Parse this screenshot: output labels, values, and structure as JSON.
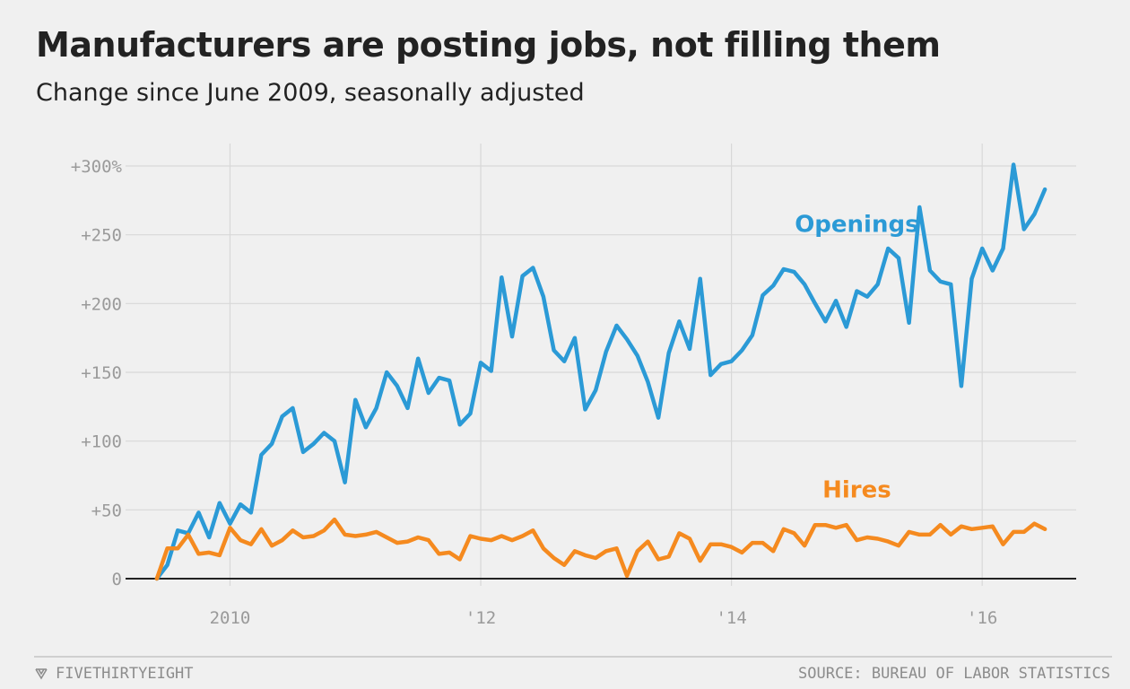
{
  "chart_data": {
    "type": "line",
    "title": "Manufacturers are posting jobs, not filling them",
    "subtitle": "Change since June 2009, seasonally adjusted",
    "xlabel": "",
    "ylabel": "",
    "xlim": [
      "2009-03",
      "2016-10"
    ],
    "ylim": [
      0,
      300
    ],
    "grid": true,
    "y_ticks": [
      {
        "value": 0,
        "label": "0"
      },
      {
        "value": 50,
        "label": "+50"
      },
      {
        "value": 100,
        "label": "+100"
      },
      {
        "value": 150,
        "label": "+150"
      },
      {
        "value": 200,
        "label": "+200"
      },
      {
        "value": 250,
        "label": "+250"
      },
      {
        "value": 300,
        "label": "+300%"
      }
    ],
    "x_ticks": [
      {
        "value": "2010-01",
        "label": "2010"
      },
      {
        "value": "2012-01",
        "label": "'12"
      },
      {
        "value": "2014-01",
        "label": "'14"
      },
      {
        "value": "2016-01",
        "label": "'16"
      }
    ],
    "series": [
      {
        "name": "Openings",
        "color": "#2b9ad6",
        "x": [
          "2009-06",
          "2009-07",
          "2009-08",
          "2009-09",
          "2009-10",
          "2009-11",
          "2009-12",
          "2010-01",
          "2010-02",
          "2010-03",
          "2010-04",
          "2010-05",
          "2010-06",
          "2010-07",
          "2010-08",
          "2010-09",
          "2010-10",
          "2010-11",
          "2010-12",
          "2011-01",
          "2011-02",
          "2011-03",
          "2011-04",
          "2011-05",
          "2011-06",
          "2011-07",
          "2011-08",
          "2011-09",
          "2011-10",
          "2011-11",
          "2011-12",
          "2012-01",
          "2012-02",
          "2012-03",
          "2012-04",
          "2012-05",
          "2012-06",
          "2012-07",
          "2012-08",
          "2012-09",
          "2012-10",
          "2012-11",
          "2012-12",
          "2013-01",
          "2013-02",
          "2013-03",
          "2013-04",
          "2013-05",
          "2013-06",
          "2013-07",
          "2013-08",
          "2013-09",
          "2013-10",
          "2013-11",
          "2013-12",
          "2014-01",
          "2014-02",
          "2014-03",
          "2014-04",
          "2014-05",
          "2014-06",
          "2014-07",
          "2014-08",
          "2014-09",
          "2014-10",
          "2014-11",
          "2014-12",
          "2015-01",
          "2015-02",
          "2015-03",
          "2015-04",
          "2015-05",
          "2015-06",
          "2015-07",
          "2015-08",
          "2015-09",
          "2015-10",
          "2015-11",
          "2015-12",
          "2016-01",
          "2016-02",
          "2016-03",
          "2016-04",
          "2016-05",
          "2016-06",
          "2016-07"
        ],
        "values": [
          0,
          10,
          35,
          33,
          48,
          30,
          55,
          40,
          54,
          48,
          90,
          98,
          118,
          124,
          92,
          98,
          106,
          100,
          70,
          130,
          110,
          124,
          150,
          140,
          124,
          160,
          135,
          146,
          144,
          112,
          120,
          157,
          151,
          219,
          176,
          220,
          226,
          205,
          166,
          158,
          175,
          123,
          137,
          165,
          184,
          174,
          162,
          143,
          117,
          164,
          187,
          167,
          218,
          148,
          156,
          158,
          166,
          177,
          206,
          213,
          225,
          223,
          214,
          200,
          187,
          202,
          183,
          209,
          205,
          214,
          240,
          233,
          186,
          270,
          224,
          216,
          214,
          140,
          218,
          240,
          224,
          240,
          301,
          254,
          265,
          283
        ]
      },
      {
        "name": "Hires",
        "color": "#f58a1f",
        "x": [
          "2009-06",
          "2009-07",
          "2009-08",
          "2009-09",
          "2009-10",
          "2009-11",
          "2009-12",
          "2010-01",
          "2010-02",
          "2010-03",
          "2010-04",
          "2010-05",
          "2010-06",
          "2010-07",
          "2010-08",
          "2010-09",
          "2010-10",
          "2010-11",
          "2010-12",
          "2011-01",
          "2011-02",
          "2011-03",
          "2011-04",
          "2011-05",
          "2011-06",
          "2011-07",
          "2011-08",
          "2011-09",
          "2011-10",
          "2011-11",
          "2011-12",
          "2012-01",
          "2012-02",
          "2012-03",
          "2012-04",
          "2012-05",
          "2012-06",
          "2012-07",
          "2012-08",
          "2012-09",
          "2012-10",
          "2012-11",
          "2012-12",
          "2013-01",
          "2013-02",
          "2013-03",
          "2013-04",
          "2013-05",
          "2013-06",
          "2013-07",
          "2013-08",
          "2013-09",
          "2013-10",
          "2013-11",
          "2013-12",
          "2014-01",
          "2014-02",
          "2014-03",
          "2014-04",
          "2014-05",
          "2014-06",
          "2014-07",
          "2014-08",
          "2014-09",
          "2014-10",
          "2014-11",
          "2014-12",
          "2015-01",
          "2015-02",
          "2015-03",
          "2015-04",
          "2015-05",
          "2015-06",
          "2015-07",
          "2015-08",
          "2015-09",
          "2015-10",
          "2015-11",
          "2015-12",
          "2016-01",
          "2016-02",
          "2016-03",
          "2016-04",
          "2016-05",
          "2016-06",
          "2016-07"
        ],
        "values": [
          0,
          22,
          22,
          32,
          18,
          19,
          17,
          37,
          28,
          25,
          36,
          24,
          28,
          35,
          30,
          31,
          35,
          43,
          32,
          31,
          32,
          34,
          30,
          26,
          27,
          30,
          28,
          18,
          19,
          14,
          31,
          29,
          28,
          31,
          28,
          31,
          35,
          22,
          15,
          10,
          20,
          17,
          15,
          20,
          22,
          2,
          20,
          27,
          14,
          16,
          33,
          29,
          13,
          25,
          25,
          23,
          19,
          26,
          26,
          20,
          36,
          33,
          24,
          39,
          39,
          37,
          39,
          28,
          30,
          29,
          27,
          24,
          34,
          32,
          32,
          39,
          32,
          38,
          36,
          37,
          38,
          25,
          34,
          34,
          40,
          36
        ]
      }
    ],
    "annotations": [
      {
        "text": "Openings",
        "series": "Openings",
        "x": "2015-01",
        "y": 252
      },
      {
        "text": "Hires",
        "series": "Hires",
        "x": "2015-01",
        "y": 59
      }
    ]
  },
  "footer": {
    "brand_name": "FIVETHIRTYEIGHT",
    "brand_icon": "fivethirtyeight-logo-icon",
    "source": "SOURCE: BUREAU OF LABOR STATISTICS"
  },
  "colors": {
    "background": "#f0f0f0",
    "grid": "#d8d8d8",
    "axis": "#222222",
    "openings": "#2b9ad6",
    "hires": "#f58a1f"
  }
}
